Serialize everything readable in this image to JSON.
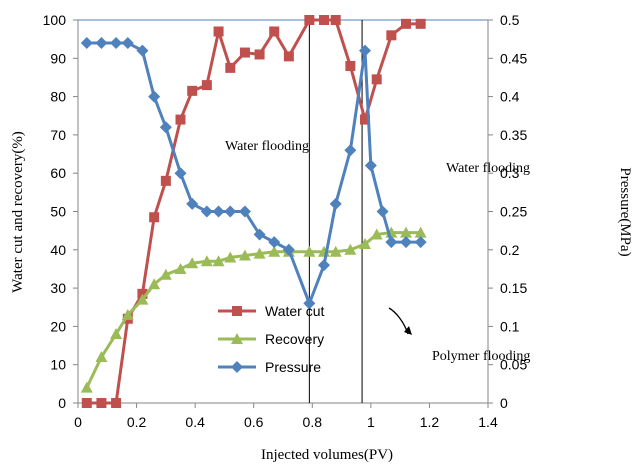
{
  "chart_data": {
    "type": "line",
    "xlabel": "Injected volumes(PV)",
    "ylabel_left": "Water cut and recovery(%)",
    "ylabel_right": "Pressure(MPa)",
    "xlim": [
      0,
      1.4
    ],
    "xticks": [
      "0",
      "0.2",
      "0.4",
      "0.6",
      "0.8",
      "1",
      "1.2",
      "1.4"
    ],
    "ylim_left": [
      0,
      100
    ],
    "yticks_left": [
      "0",
      "10",
      "20",
      "30",
      "40",
      "50",
      "60",
      "70",
      "80",
      "90",
      "100"
    ],
    "ylim_right": [
      0,
      0.5
    ],
    "yticks_right": [
      "0",
      "0.05",
      "0.1",
      "0.15",
      "0.2",
      "0.25",
      "0.3",
      "0.35",
      "0.4",
      "0.45",
      "0.5"
    ],
    "grid": false,
    "legend_position": "center",
    "series": [
      {
        "name": "Water cut",
        "axis": "left",
        "color": "#c0504d",
        "marker": "square",
        "x": [
          0.03,
          0.08,
          0.13,
          0.17,
          0.22,
          0.26,
          0.3,
          0.35,
          0.39,
          0.44,
          0.48,
          0.52,
          0.57,
          0.62,
          0.67,
          0.72,
          0.79,
          0.84,
          0.88,
          0.93,
          0.98,
          1.02,
          1.07,
          1.12,
          1.17
        ],
        "y": [
          0,
          0,
          0,
          22,
          28.5,
          48.5,
          58,
          74,
          81.5,
          83,
          97,
          87.5,
          91.5,
          91,
          97,
          90.5,
          100,
          100,
          100,
          88,
          74,
          84.5,
          96,
          99,
          99
        ]
      },
      {
        "name": "Recovery",
        "axis": "left",
        "color": "#9bbb59",
        "marker": "triangle",
        "x": [
          0.03,
          0.08,
          0.13,
          0.17,
          0.22,
          0.26,
          0.3,
          0.35,
          0.39,
          0.44,
          0.48,
          0.52,
          0.57,
          0.62,
          0.67,
          0.72,
          0.79,
          0.84,
          0.88,
          0.93,
          0.98,
          1.02,
          1.07,
          1.12,
          1.17
        ],
        "y": [
          4,
          12,
          18,
          23,
          27,
          31,
          33.5,
          35,
          36.5,
          37,
          37,
          38,
          38.5,
          39,
          39.5,
          39.5,
          39.5,
          39.5,
          39.5,
          40,
          41.5,
          44,
          44.5,
          44.5,
          44.5
        ]
      },
      {
        "name": "Pressure",
        "axis": "right",
        "color": "#4f81bd",
        "marker": "diamond",
        "x": [
          0.03,
          0.08,
          0.13,
          0.17,
          0.22,
          0.26,
          0.3,
          0.35,
          0.39,
          0.44,
          0.48,
          0.52,
          0.57,
          0.62,
          0.67,
          0.72,
          0.79,
          0.84,
          0.88,
          0.93,
          0.98,
          1.0,
          1.04,
          1.07,
          1.12,
          1.17
        ],
        "y": [
          0.47,
          0.47,
          0.47,
          0.47,
          0.46,
          0.4,
          0.36,
          0.3,
          0.26,
          0.25,
          0.25,
          0.25,
          0.25,
          0.22,
          0.21,
          0.2,
          0.13,
          0.18,
          0.26,
          0.33,
          0.46,
          0.31,
          0.25,
          0.21,
          0.21,
          0.21
        ]
      }
    ],
    "vertical_lines": [
      0.79,
      0.97
    ],
    "annotations": {
      "water_flooding_1": "Water flooding",
      "water_flooding_2": "Water flooding",
      "polymer_flooding": "Polymer flooding"
    }
  }
}
